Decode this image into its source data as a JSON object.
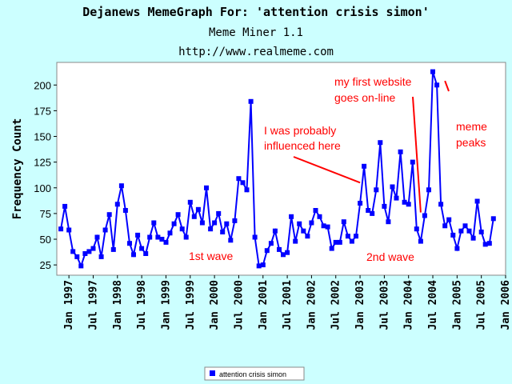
{
  "header": {
    "title": "Dejanews MemeGraph For: 'attention crisis simon'",
    "subtitle": "Meme Miner 1.1",
    "url": "http://www.realmeme.com"
  },
  "chart_data": {
    "type": "line",
    "ylabel": "Frequency Count",
    "xlabel": "",
    "ylim": [
      15,
      222
    ],
    "xlim": [
      "1996-10",
      "2006-01"
    ],
    "grid": false,
    "legend_position": "bottom-center",
    "y_ticks": [
      25,
      50,
      75,
      100,
      125,
      150,
      175,
      200
    ],
    "x_tick_labels": [
      "Jan 1997",
      "Jul 1997",
      "Jan 1998",
      "Jul 1998",
      "Jan 1999",
      "Jul 1999",
      "Jan 2000",
      "Jul 2000",
      "Jan 2001",
      "Jul 2001",
      "Jan 2002",
      "Jul 2002",
      "Jan 2003",
      "Jul 2003",
      "Jan 2004",
      "Jul 2004",
      "Jan 2005",
      "Jul 2005",
      "Jan 2006"
    ],
    "series": [
      {
        "name": "attention crisis simon",
        "color": "#0000ff",
        "start": "1996-11",
        "values": [
          60,
          82,
          59,
          38,
          33,
          24,
          36,
          38,
          41,
          52,
          33,
          59,
          74,
          40,
          84,
          102,
          78,
          46,
          35,
          54,
          41,
          36,
          52,
          66,
          52,
          50,
          47,
          56,
          65,
          74,
          60,
          52,
          86,
          72,
          79,
          66,
          100,
          60,
          66,
          75,
          57,
          65,
          49,
          68,
          109,
          105,
          98,
          184,
          52,
          24,
          25,
          39,
          46,
          58,
          40,
          35,
          37,
          72,
          48,
          65,
          58,
          53,
          66,
          78,
          72,
          63,
          62,
          41,
          47,
          47,
          67,
          53,
          48,
          53,
          85,
          121,
          78,
          75,
          98,
          144,
          82,
          67,
          101,
          90,
          135,
          86,
          84,
          125,
          60,
          48,
          73,
          98,
          213,
          200,
          84,
          63,
          69,
          54,
          41,
          58,
          63,
          58,
          51,
          87,
          57,
          45,
          46,
          70
        ]
      }
    ],
    "annotations": [
      {
        "text": "1st wave",
        "color": "#ff0000"
      },
      {
        "text": "2nd wave",
        "color": "#ff0000"
      },
      {
        "text": "I was probably influenced here",
        "lines": [
          "I was probably",
          "influenced here"
        ],
        "color": "#ff0000",
        "arrow_to": [
          "2003-01",
          105
        ]
      },
      {
        "text": "my first website goes on-line",
        "lines": [
          "my first website",
          "goes on-line"
        ],
        "color": "#ff0000",
        "arrow_to": [
          "2004-04",
          76
        ]
      },
      {
        "text": "meme peaks",
        "lines": [
          "meme",
          "peaks"
        ],
        "color": "#ff0000",
        "arrow_to": [
          "2004-10",
          204
        ]
      }
    ]
  }
}
